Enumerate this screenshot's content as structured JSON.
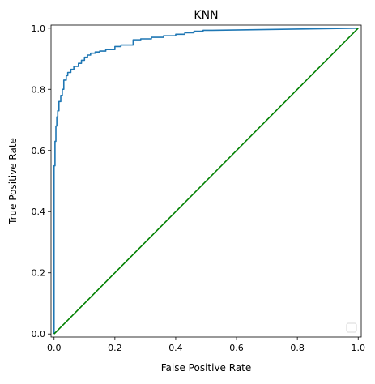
{
  "chart_data": {
    "type": "line",
    "title": "KNN",
    "xlabel": "False Positive Rate",
    "ylabel": "True Positive Rate",
    "xlim": [
      -0.01,
      1.01
    ],
    "ylim": [
      -0.01,
      1.01
    ],
    "xticks": [
      0.0,
      0.2,
      0.4,
      0.6,
      0.8,
      1.0
    ],
    "xtick_labels": [
      "0.0",
      "0.2",
      "0.4",
      "0.6",
      "0.8",
      "1.0"
    ],
    "yticks": [
      0.0,
      0.2,
      0.4,
      0.6,
      0.8,
      1.0
    ],
    "ytick_labels": [
      "0.0",
      "0.2",
      "0.4",
      "0.6",
      "0.8",
      "1.0"
    ],
    "grid": false,
    "legend": {
      "placement": "lower-right",
      "entries": []
    },
    "series": [
      {
        "color": "#1f77b4",
        "x": [
          0.0,
          0.0,
          0.003,
          0.003,
          0.006,
          0.006,
          0.009,
          0.009,
          0.012,
          0.012,
          0.016,
          0.016,
          0.022,
          0.022,
          0.027,
          0.027,
          0.032,
          0.032,
          0.04,
          0.04,
          0.045,
          0.045,
          0.055,
          0.055,
          0.065,
          0.065,
          0.08,
          0.08,
          0.09,
          0.09,
          0.1,
          0.1,
          0.11,
          0.11,
          0.12,
          0.12,
          0.135,
          0.135,
          0.15,
          0.15,
          0.17,
          0.17,
          0.2,
          0.2,
          0.22,
          0.22,
          0.26,
          0.26,
          0.285,
          0.285,
          0.32,
          0.32,
          0.36,
          0.36,
          0.4,
          0.4,
          0.43,
          0.43,
          0.46,
          0.46,
          0.49,
          0.49,
          0.52,
          1.0
        ],
        "y": [
          0.0,
          0.55,
          0.55,
          0.63,
          0.63,
          0.68,
          0.68,
          0.71,
          0.71,
          0.73,
          0.73,
          0.76,
          0.76,
          0.78,
          0.78,
          0.8,
          0.8,
          0.83,
          0.83,
          0.845,
          0.845,
          0.855,
          0.855,
          0.865,
          0.865,
          0.875,
          0.875,
          0.885,
          0.885,
          0.895,
          0.895,
          0.905,
          0.905,
          0.912,
          0.912,
          0.918,
          0.918,
          0.922,
          0.922,
          0.925,
          0.925,
          0.93,
          0.93,
          0.94,
          0.94,
          0.945,
          0.945,
          0.962,
          0.962,
          0.965,
          0.965,
          0.97,
          0.97,
          0.975,
          0.975,
          0.98,
          0.98,
          0.985,
          0.985,
          0.99,
          0.99,
          0.993,
          0.993,
          1.0
        ]
      },
      {
        "color": "#008000",
        "x": [
          0.0,
          1.0
        ],
        "y": [
          0.0,
          1.0
        ]
      }
    ]
  }
}
